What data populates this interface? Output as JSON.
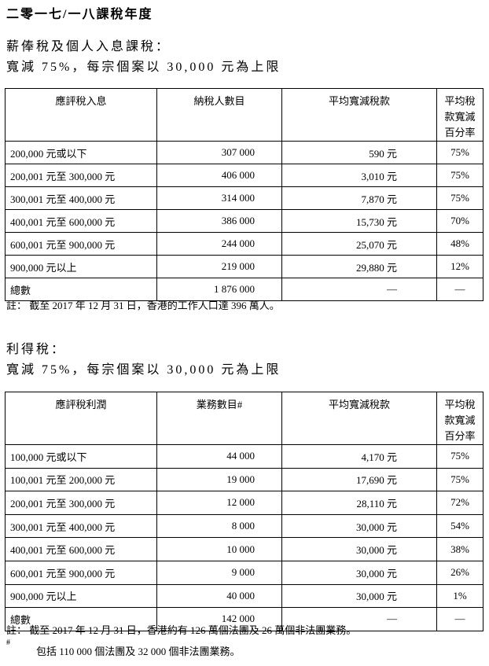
{
  "title": "二零一七/一八課稅年度",
  "section1": {
    "heading": "薪俸稅及個人入息課稅：",
    "subheading": "寬減 75%，每宗個案以 30,000 元為上限",
    "headers": [
      "應評稅入息",
      "納稅人數目",
      "平均寬減稅款",
      "平均稅款寬減\n百分率"
    ],
    "rows": [
      [
        "200,000 元或以下",
        "307 000",
        "590 元",
        "75%"
      ],
      [
        "200,001 元至 300,000 元",
        "406 000",
        "3,010 元",
        "75%"
      ],
      [
        "300,001 元至 400,000 元",
        "314 000",
        "7,870 元",
        "75%"
      ],
      [
        "400,001 元至 600,000 元",
        "386 000",
        "15,730 元",
        "70%"
      ],
      [
        "600,001 元至 900,000 元",
        "244 000",
        "25,070 元",
        "48%"
      ],
      [
        "900,000 元以上",
        "219 000",
        "29,880 元",
        "12%"
      ],
      [
        "總數",
        "1 876 000",
        "—",
        "—"
      ]
    ],
    "note": "註： 截至 2017 年 12 月 31 日，香港的工作人口達 396 萬人。"
  },
  "section2": {
    "heading": "利得稅：",
    "subheading": "寬減 75%，每宗個案以 30,000 元為上限",
    "headers": [
      "應評稅利潤",
      "業務數目#",
      "平均寬減稅款",
      "平均稅款寬減\n百分率"
    ],
    "rows": [
      [
        "100,000 元或以下",
        "44 000",
        "4,170 元",
        "75%"
      ],
      [
        "100,001 元至 200,000 元",
        "19 000",
        "17,690 元",
        "75%"
      ],
      [
        "200,001 元至 300,000 元",
        "12 000",
        "28,110 元",
        "72%"
      ],
      [
        "300,001 元至 400,000 元",
        "8 000",
        "30,000 元",
        "54%"
      ],
      [
        "400,001 元至 600,000 元",
        "10 000",
        "30,000 元",
        "38%"
      ],
      [
        "600,001 元至 900,000 元",
        "9 000",
        "30,000 元",
        "26%"
      ],
      [
        "900,000 元以上",
        "40 000",
        "30,000 元",
        "1%"
      ],
      [
        "總數",
        "142 000",
        "—",
        "—"
      ]
    ],
    "note": "註： 截至 2017 年 12 月 31 日，香港約有 126 萬個法團及 26 萬個非法團業務。",
    "footnote_mark": "#",
    "footnote": "包括 110 000 個法團及 32 000 個非法團業務。"
  }
}
